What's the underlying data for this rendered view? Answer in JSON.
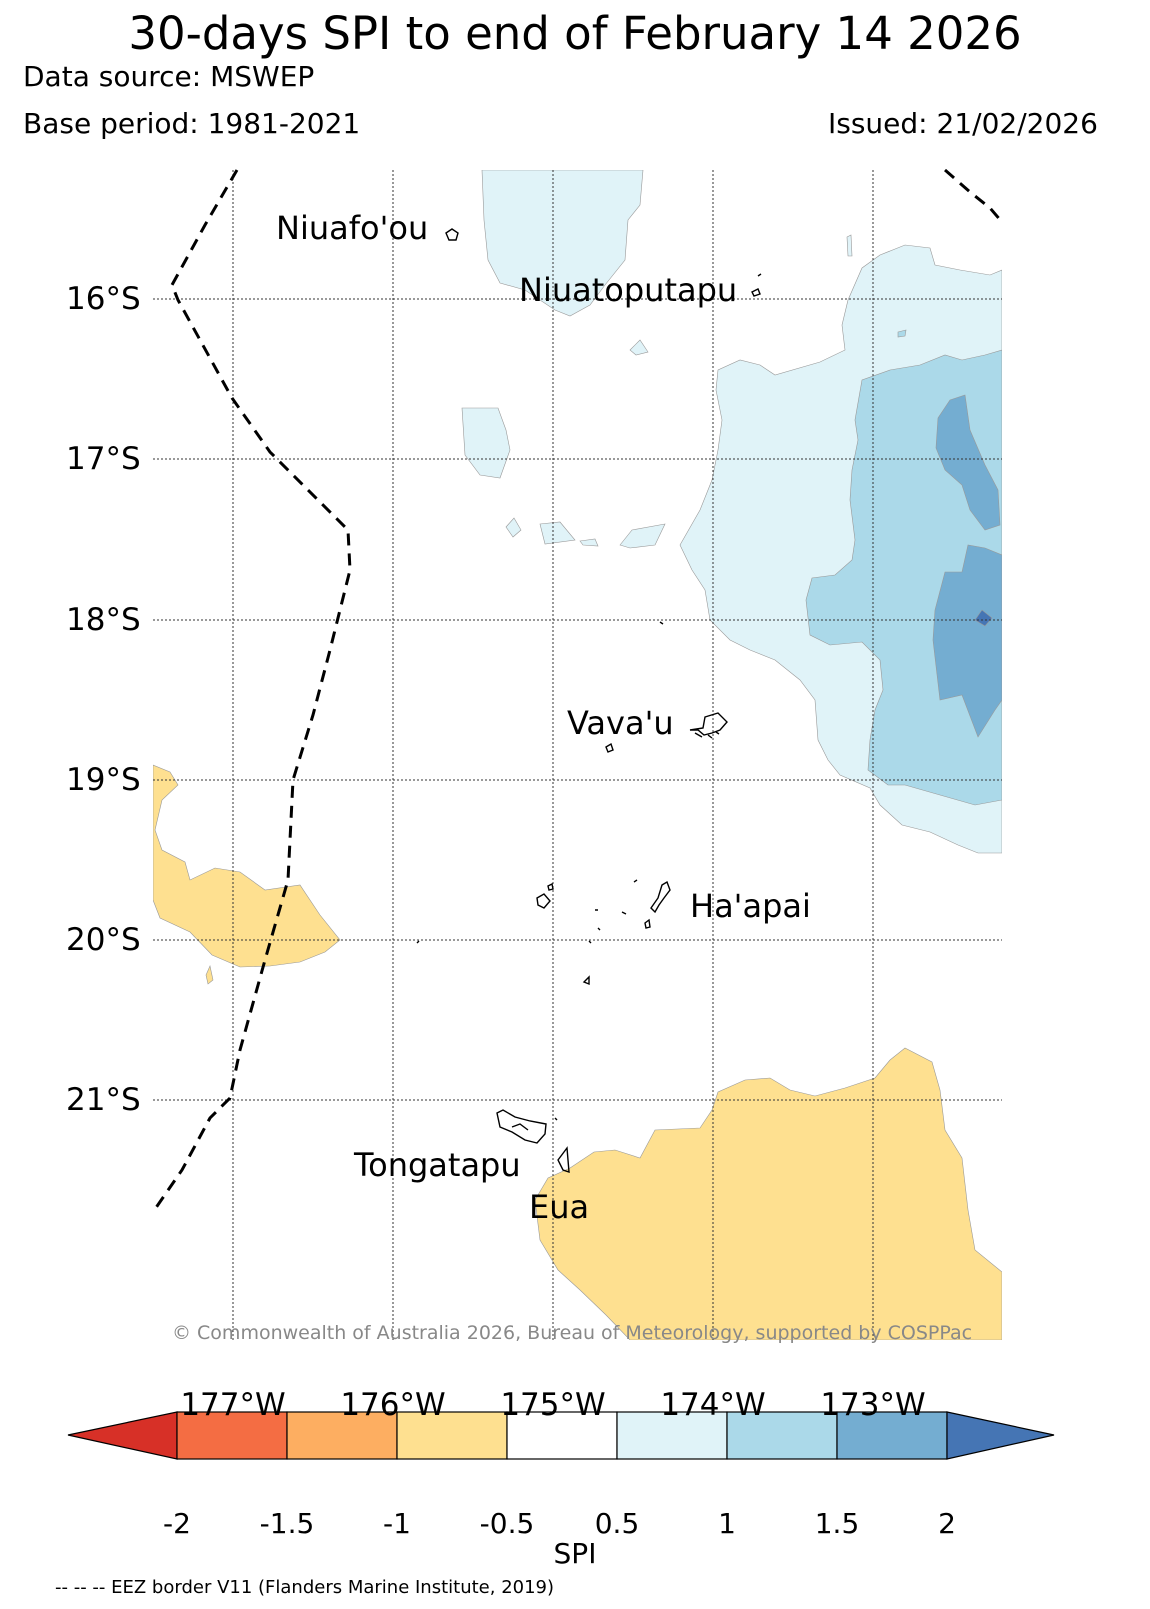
{
  "title": "30-days SPI to end of February 14 2026",
  "data_source": "Data source: MSWEP",
  "base_period": "Base period: 1981-2021",
  "issued": "Issued: 21/02/2026",
  "lat_labels": [
    "16°S",
    "17°S",
    "18°S",
    "19°S",
    "20°S",
    "21°S"
  ],
  "lon_labels": [
    "177°W",
    "176°W",
    "175°W",
    "174°W",
    "173°W"
  ],
  "places": {
    "niuafoou": "Niuafo'ou",
    "niuatoputapu": "Niuatoputapu",
    "vavau": "Vava'u",
    "haapai": "Ha'apai",
    "tongatapu": "Tongatapu",
    "eua": "Eua"
  },
  "copyright": "© Commonwealth of Australia 2026, Bureau of Meteorology, supported by COSPPac",
  "colorbar": {
    "label": "SPI",
    "ticks": [
      "-2",
      "-1.5",
      "-1",
      "-0.5",
      "0.5",
      "1",
      "1.5",
      "2"
    ],
    "colors": [
      "#d73027",
      "#f46d43",
      "#fdae61",
      "#fee090",
      "#ffffff",
      "#e0f3f8",
      "#abd9e9",
      "#74add1",
      "#4575b4"
    ]
  },
  "footer": "-- -- -- EEZ border V11 (Flanders Marine Institute, 2019)"
}
